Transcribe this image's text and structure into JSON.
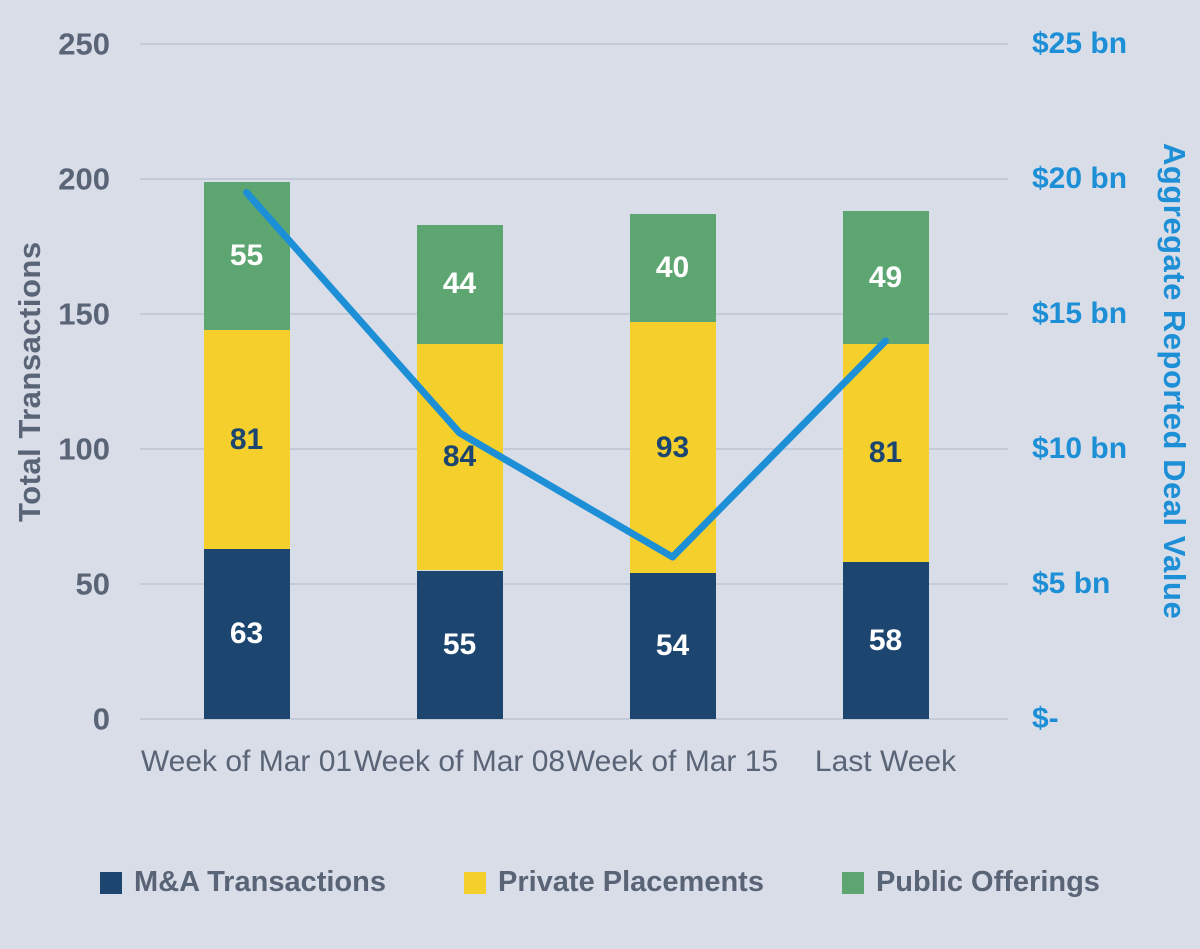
{
  "style": {
    "background": "#d8dde7",
    "gridline_color": "#c3cbd8",
    "gray_text_color": "#5a6477"
  },
  "chart_data": {
    "type": "combo",
    "subtypes": [
      "stacked-bar",
      "line"
    ],
    "categories": [
      "Week of Mar 01",
      "Week of Mar 08",
      "Week of Mar 15",
      "Last Week"
    ],
    "series": [
      {
        "name": "M&A Transactions",
        "type": "bar",
        "color": "#1c4670",
        "label_color": "#ffffff",
        "values": [
          63,
          55,
          54,
          58
        ]
      },
      {
        "name": "Private Placements",
        "type": "bar",
        "color": "#f5cf2c",
        "label_color": "#1c4670",
        "values": [
          81,
          84,
          93,
          81
        ]
      },
      {
        "name": "Public Offerings",
        "type": "bar",
        "color": "#5ea671",
        "label_color": "#ffffff",
        "values": [
          55,
          44,
          40,
          49
        ]
      }
    ],
    "line_series": {
      "name": "Aggregate Reported Deal Value",
      "axis": "right",
      "color": "#1d8fd6",
      "values_bn": [
        19.5,
        10.6,
        6.0,
        14.0
      ]
    },
    "ylabel_left": "Total Transactions",
    "ylabel_right": "Aggregate Reported Deal Value",
    "left_axis": {
      "min": 0,
      "max": 250,
      "ticks": [
        "250",
        "200",
        "150",
        "100",
        "50",
        "0"
      ],
      "tick_values": [
        250,
        200,
        150,
        100,
        50,
        0
      ],
      "color": "#5a6477"
    },
    "right_axis": {
      "min": 0,
      "max": 25,
      "ticks": [
        "$25 bn",
        "$20 bn",
        "$15 bn",
        "$10 bn",
        "$5 bn",
        "$-"
      ],
      "tick_values": [
        25,
        20,
        15,
        10,
        5,
        0
      ],
      "color": "#1d8fd6"
    },
    "grid": true,
    "legend_position": "bottom",
    "legend": [
      "M&A Transactions",
      "Private Placements",
      "Public Offerings"
    ]
  }
}
